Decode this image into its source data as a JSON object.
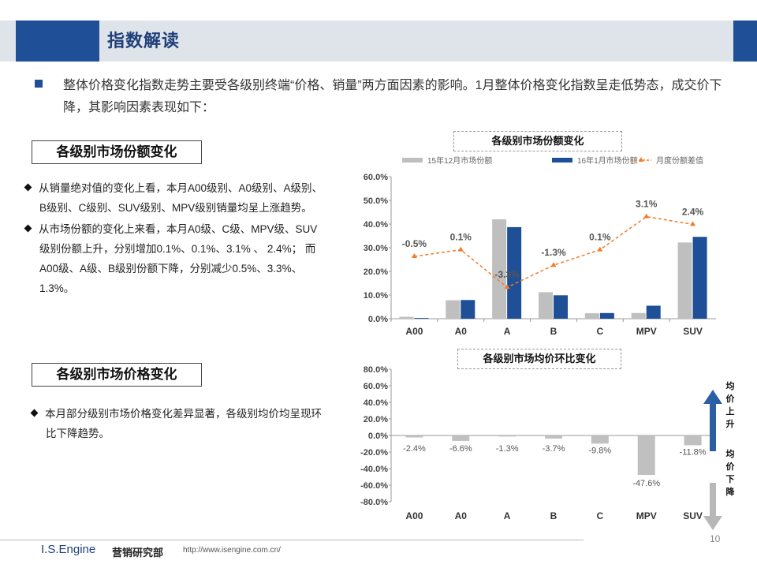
{
  "header": {
    "title": "指数解读"
  },
  "intro": {
    "text": "整体价格变化指数走势主要受各级别终端“价格、销量”两方面因素的影响。1月整体价格变化指数呈走低势态，成交价下降，其影响因素表现如下："
  },
  "section1": {
    "title": "各级别市场份额变化",
    "bullets": [
      "从销量绝对值的变化上看，本月A00级别、A0级别、A级别、B级别、C级别、SUV级别、MPV级别销量均呈上涨趋势。",
      "从市场份额的变化上来看，本月A0级、C级、MPV级、SUV级别份额上升，分别增加0.1%、0.1%、3.1% 、 2.4%； 而A00级、A级、B级别份额下降，分别减少0.5%、3.3%、1.3%。"
    ]
  },
  "section2": {
    "title": "各级别市场价格变化",
    "bullets": [
      "本月部分级别市场价格变化差异显著，各级别均价均呈现环比下降趋势。"
    ]
  },
  "colors": {
    "blue": "#1f4f96",
    "gray": "#bfbfbf",
    "orange": "#f07d2b"
  },
  "chart_data": [
    {
      "type": "bar",
      "title": "各级别市场份额变化",
      "categories": [
        "A00",
        "A0",
        "A",
        "B",
        "C",
        "MPV",
        "SUV"
      ],
      "series": [
        {
          "name": "15年12月市场份额",
          "values": [
            0.8,
            7.8,
            42.0,
            11.2,
            2.3,
            2.4,
            32.2
          ]
        },
        {
          "name": "16年1月市场份额",
          "values": [
            0.3,
            7.9,
            38.7,
            9.9,
            2.4,
            5.5,
            34.6
          ]
        }
      ],
      "line_series": {
        "name": "月度份额差值",
        "values": [
          -0.5,
          0.1,
          -3.3,
          -1.3,
          0.1,
          3.1,
          2.4
        ],
        "labels": [
          "-0.5%",
          "0.1%",
          "-3.3%",
          "-1.3%",
          "0.1%",
          "3.1%",
          "2.4%"
        ]
      },
      "yticks": [
        "0.0%",
        "10.0%",
        "20.0%",
        "30.0%",
        "40.0%",
        "50.0%",
        "60.0%"
      ],
      "ylim": [
        0,
        60
      ],
      "legend": "top"
    },
    {
      "type": "bar",
      "title": "各级别市场均价环比变化",
      "categories": [
        "A00",
        "A0",
        "A",
        "B",
        "C",
        "MPV",
        "SUV"
      ],
      "values": [
        -2.4,
        -6.6,
        -1.3,
        -3.7,
        -9.8,
        -47.6,
        -11.8
      ],
      "labels": [
        "-2.4%",
        "-6.6%",
        "-1.3%",
        "-3.7%",
        "-9.8%",
        "-47.6%",
        "-11.8%"
      ],
      "yticks": [
        "80.0%",
        "60.0%",
        "40.0%",
        "20.0%",
        "0.0%",
        "-20.0%",
        "-40.0%",
        "-60.0%",
        "-80.0%"
      ],
      "ylim": [
        -80,
        80
      ],
      "annotation_up": "均价上升",
      "annotation_down": "均价下降"
    }
  ],
  "footer": {
    "brand": "I.S.Engine",
    "dept": "营销研究部",
    "url": "http://www.isengine.com.cn/",
    "page": "10"
  }
}
